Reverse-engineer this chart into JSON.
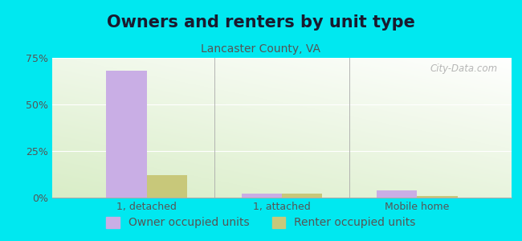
{
  "title": "Owners and renters by unit type",
  "subtitle": "Lancaster County, VA",
  "categories": [
    "1, detached",
    "1, attached",
    "Mobile home"
  ],
  "owner_values": [
    68,
    2,
    4
  ],
  "renter_values": [
    12,
    2,
    1
  ],
  "owner_color": "#c9aee5",
  "renter_color": "#c8c87a",
  "outer_background": "#00e8f0",
  "ylim": [
    0,
    75
  ],
  "yticks": [
    0,
    25,
    50,
    75
  ],
  "ytick_labels": [
    "0%",
    "25%",
    "50%",
    "75%"
  ],
  "bar_width": 0.3,
  "title_fontsize": 15,
  "subtitle_fontsize": 10,
  "tick_fontsize": 9,
  "legend_fontsize": 10,
  "watermark": "City-Data.com"
}
